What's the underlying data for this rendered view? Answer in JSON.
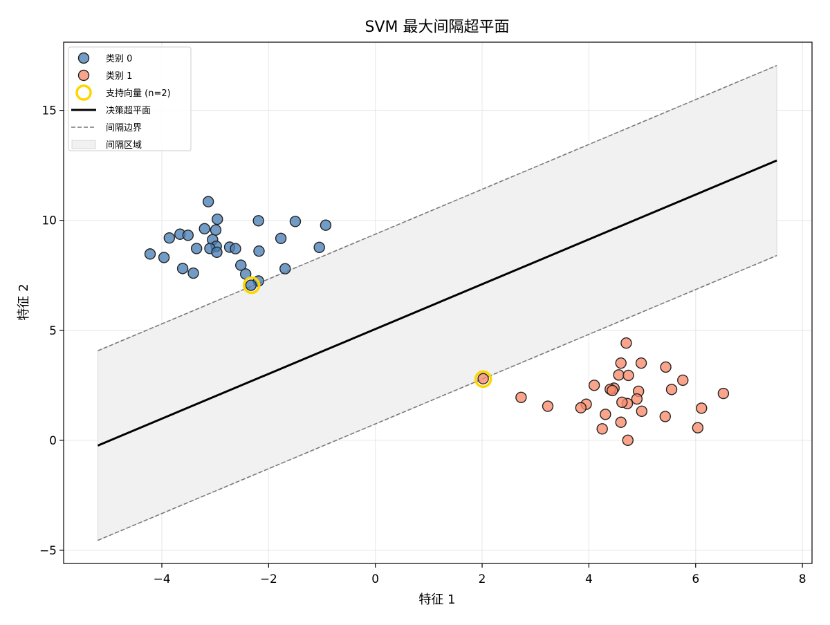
{
  "chart_data": {
    "type": "scatter",
    "title": "SVM 最大间隔超平面",
    "xlabel": "特征 1",
    "ylabel": "特征 2",
    "xlim": [
      -5.84,
      8.18
    ],
    "ylim": [
      -5.6,
      18.1
    ],
    "x_ticks": [
      -4,
      -2,
      0,
      2,
      4,
      6,
      8
    ],
    "y_ticks": [
      -5,
      0,
      5,
      10,
      15
    ],
    "grid": true,
    "legend_position": "top-left",
    "colors": {
      "class0": "#4a7fb5",
      "class1": "#fa8a6b",
      "support_vectors": "#ffd500",
      "hyperplane": "#000000",
      "margin": "#808080",
      "margin_fill": "#e8e8e8"
    },
    "legend": [
      {
        "label": "类别 0",
        "kind": "class0"
      },
      {
        "label": "类别 1",
        "kind": "class1"
      },
      {
        "label": "支持向量 (n=2)",
        "kind": "support"
      },
      {
        "label": "决策超平面",
        "kind": "hyperplane"
      },
      {
        "label": "间隔边界",
        "kind": "margin"
      },
      {
        "label": "间隔区域",
        "kind": "region"
      }
    ],
    "series": [
      {
        "name": "类别 0",
        "points": [
          [
            -3.13,
            10.85
          ],
          [
            -2.96,
            10.05
          ],
          [
            -2.19,
            9.98
          ],
          [
            -1.5,
            9.95
          ],
          [
            -0.93,
            9.78
          ],
          [
            -3.2,
            9.62
          ],
          [
            -2.99,
            9.56
          ],
          [
            -3.66,
            9.37
          ],
          [
            -3.51,
            9.32
          ],
          [
            -3.86,
            9.2
          ],
          [
            -1.77,
            9.18
          ],
          [
            -3.05,
            9.12
          ],
          [
            -2.98,
            8.82
          ],
          [
            -2.73,
            8.78
          ],
          [
            -3.35,
            8.72
          ],
          [
            -3.1,
            8.72
          ],
          [
            -2.62,
            8.71
          ],
          [
            -1.05,
            8.77
          ],
          [
            -2.18,
            8.6
          ],
          [
            -2.97,
            8.55
          ],
          [
            -4.22,
            8.47
          ],
          [
            -3.96,
            8.31
          ],
          [
            -2.52,
            7.96
          ],
          [
            -3.61,
            7.81
          ],
          [
            -1.69,
            7.8
          ],
          [
            -3.41,
            7.6
          ],
          [
            -2.43,
            7.56
          ],
          [
            -2.19,
            7.24
          ],
          [
            -2.33,
            7.05
          ]
        ]
      },
      {
        "name": "类别 1",
        "points": [
          [
            4.7,
            4.42
          ],
          [
            4.98,
            3.51
          ],
          [
            4.6,
            3.51
          ],
          [
            5.44,
            3.33
          ],
          [
            4.56,
            2.97
          ],
          [
            4.74,
            2.95
          ],
          [
            5.76,
            2.73
          ],
          [
            4.1,
            2.5
          ],
          [
            4.47,
            2.37
          ],
          [
            4.4,
            2.32
          ],
          [
            5.55,
            2.31
          ],
          [
            4.44,
            2.26
          ],
          [
            4.93,
            2.23
          ],
          [
            6.52,
            2.13
          ],
          [
            2.73,
            1.95
          ],
          [
            4.9,
            1.88
          ],
          [
            4.72,
            1.67
          ],
          [
            4.62,
            1.73
          ],
          [
            3.95,
            1.64
          ],
          [
            3.23,
            1.55
          ],
          [
            3.85,
            1.48
          ],
          [
            6.11,
            1.46
          ],
          [
            4.99,
            1.32
          ],
          [
            4.31,
            1.18
          ],
          [
            5.43,
            1.08
          ],
          [
            4.6,
            0.82
          ],
          [
            6.04,
            0.57
          ],
          [
            4.25,
            0.52
          ],
          [
            4.73,
            0.0
          ],
          [
            2.02,
            2.8
          ]
        ]
      }
    ],
    "support_vectors": [
      [
        -2.32,
        7.05
      ],
      [
        2.02,
        2.78
      ]
    ],
    "hyperplane": {
      "x": [
        -5.2,
        7.52
      ],
      "y": [
        -0.24,
        12.72
      ]
    },
    "margin_upper": {
      "x": [
        -5.2,
        7.52
      ],
      "y": [
        4.07,
        17.04
      ]
    },
    "margin_lower": {
      "x": [
        -5.2,
        7.52
      ],
      "y": [
        -4.55,
        8.4
      ]
    }
  }
}
